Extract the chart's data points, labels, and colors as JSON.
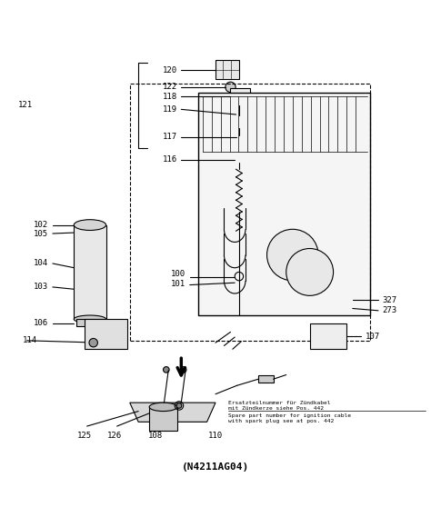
{
  "title": "(N4211AG04)",
  "bg_color": "#ffffff",
  "line_color": "#000000",
  "text_color": "#000000",
  "note_line1_de": "Ersatzteilnummer für Zündkabel",
  "note_line2_de": "mit Zündkerze siehe Pos. 442",
  "note_line1_en": "Spare part number for ignition cable",
  "note_line2_en": "with spark plug see at pos. 442"
}
